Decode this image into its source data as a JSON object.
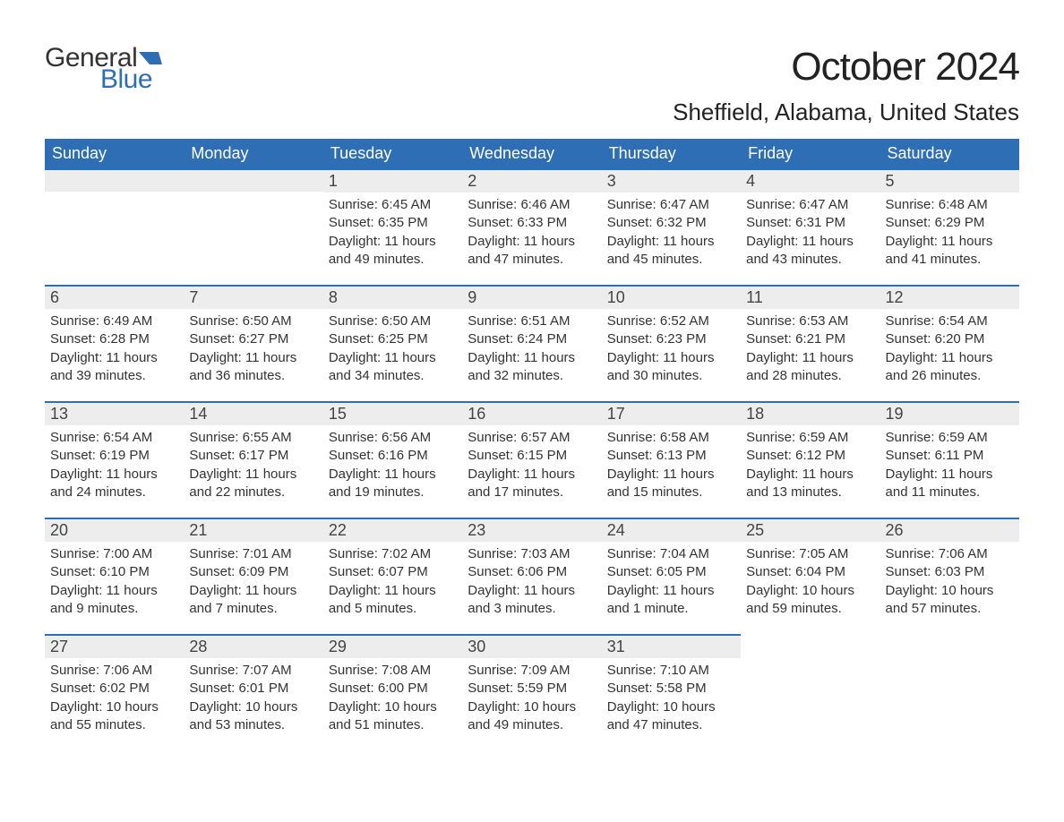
{
  "logo": {
    "text_general": "General",
    "text_blue": "Blue",
    "flag_color": "#2d6eb5"
  },
  "title": "October 2024",
  "location": "Sheffield, Alabama, United States",
  "colors": {
    "header_bg": "#2d6eb5",
    "header_text": "#ffffff",
    "daynum_bg": "#ededed",
    "daynum_border": "#2d6eb5",
    "body_text": "#333333",
    "title_text": "#222222"
  },
  "fonts": {
    "title_size_pt": 33,
    "location_size_pt": 20,
    "header_size_pt": 14,
    "daynum_size_pt": 14,
    "body_size_pt": 11
  },
  "weekdays": [
    "Sunday",
    "Monday",
    "Tuesday",
    "Wednesday",
    "Thursday",
    "Friday",
    "Saturday"
  ],
  "weeks": [
    [
      null,
      null,
      {
        "n": "1",
        "sr": "Sunrise: 6:45 AM",
        "ss": "Sunset: 6:35 PM",
        "dl1": "Daylight: 11 hours",
        "dl2": "and 49 minutes."
      },
      {
        "n": "2",
        "sr": "Sunrise: 6:46 AM",
        "ss": "Sunset: 6:33 PM",
        "dl1": "Daylight: 11 hours",
        "dl2": "and 47 minutes."
      },
      {
        "n": "3",
        "sr": "Sunrise: 6:47 AM",
        "ss": "Sunset: 6:32 PM",
        "dl1": "Daylight: 11 hours",
        "dl2": "and 45 minutes."
      },
      {
        "n": "4",
        "sr": "Sunrise: 6:47 AM",
        "ss": "Sunset: 6:31 PM",
        "dl1": "Daylight: 11 hours",
        "dl2": "and 43 minutes."
      },
      {
        "n": "5",
        "sr": "Sunrise: 6:48 AM",
        "ss": "Sunset: 6:29 PM",
        "dl1": "Daylight: 11 hours",
        "dl2": "and 41 minutes."
      }
    ],
    [
      {
        "n": "6",
        "sr": "Sunrise: 6:49 AM",
        "ss": "Sunset: 6:28 PM",
        "dl1": "Daylight: 11 hours",
        "dl2": "and 39 minutes."
      },
      {
        "n": "7",
        "sr": "Sunrise: 6:50 AM",
        "ss": "Sunset: 6:27 PM",
        "dl1": "Daylight: 11 hours",
        "dl2": "and 36 minutes."
      },
      {
        "n": "8",
        "sr": "Sunrise: 6:50 AM",
        "ss": "Sunset: 6:25 PM",
        "dl1": "Daylight: 11 hours",
        "dl2": "and 34 minutes."
      },
      {
        "n": "9",
        "sr": "Sunrise: 6:51 AM",
        "ss": "Sunset: 6:24 PM",
        "dl1": "Daylight: 11 hours",
        "dl2": "and 32 minutes."
      },
      {
        "n": "10",
        "sr": "Sunrise: 6:52 AM",
        "ss": "Sunset: 6:23 PM",
        "dl1": "Daylight: 11 hours",
        "dl2": "and 30 minutes."
      },
      {
        "n": "11",
        "sr": "Sunrise: 6:53 AM",
        "ss": "Sunset: 6:21 PM",
        "dl1": "Daylight: 11 hours",
        "dl2": "and 28 minutes."
      },
      {
        "n": "12",
        "sr": "Sunrise: 6:54 AM",
        "ss": "Sunset: 6:20 PM",
        "dl1": "Daylight: 11 hours",
        "dl2": "and 26 minutes."
      }
    ],
    [
      {
        "n": "13",
        "sr": "Sunrise: 6:54 AM",
        "ss": "Sunset: 6:19 PM",
        "dl1": "Daylight: 11 hours",
        "dl2": "and 24 minutes."
      },
      {
        "n": "14",
        "sr": "Sunrise: 6:55 AM",
        "ss": "Sunset: 6:17 PM",
        "dl1": "Daylight: 11 hours",
        "dl2": "and 22 minutes."
      },
      {
        "n": "15",
        "sr": "Sunrise: 6:56 AM",
        "ss": "Sunset: 6:16 PM",
        "dl1": "Daylight: 11 hours",
        "dl2": "and 19 minutes."
      },
      {
        "n": "16",
        "sr": "Sunrise: 6:57 AM",
        "ss": "Sunset: 6:15 PM",
        "dl1": "Daylight: 11 hours",
        "dl2": "and 17 minutes."
      },
      {
        "n": "17",
        "sr": "Sunrise: 6:58 AM",
        "ss": "Sunset: 6:13 PM",
        "dl1": "Daylight: 11 hours",
        "dl2": "and 15 minutes."
      },
      {
        "n": "18",
        "sr": "Sunrise: 6:59 AM",
        "ss": "Sunset: 6:12 PM",
        "dl1": "Daylight: 11 hours",
        "dl2": "and 13 minutes."
      },
      {
        "n": "19",
        "sr": "Sunrise: 6:59 AM",
        "ss": "Sunset: 6:11 PM",
        "dl1": "Daylight: 11 hours",
        "dl2": "and 11 minutes."
      }
    ],
    [
      {
        "n": "20",
        "sr": "Sunrise: 7:00 AM",
        "ss": "Sunset: 6:10 PM",
        "dl1": "Daylight: 11 hours",
        "dl2": "and 9 minutes."
      },
      {
        "n": "21",
        "sr": "Sunrise: 7:01 AM",
        "ss": "Sunset: 6:09 PM",
        "dl1": "Daylight: 11 hours",
        "dl2": "and 7 minutes."
      },
      {
        "n": "22",
        "sr": "Sunrise: 7:02 AM",
        "ss": "Sunset: 6:07 PM",
        "dl1": "Daylight: 11 hours",
        "dl2": "and 5 minutes."
      },
      {
        "n": "23",
        "sr": "Sunrise: 7:03 AM",
        "ss": "Sunset: 6:06 PM",
        "dl1": "Daylight: 11 hours",
        "dl2": "and 3 minutes."
      },
      {
        "n": "24",
        "sr": "Sunrise: 7:04 AM",
        "ss": "Sunset: 6:05 PM",
        "dl1": "Daylight: 11 hours",
        "dl2": "and 1 minute."
      },
      {
        "n": "25",
        "sr": "Sunrise: 7:05 AM",
        "ss": "Sunset: 6:04 PM",
        "dl1": "Daylight: 10 hours",
        "dl2": "and 59 minutes."
      },
      {
        "n": "26",
        "sr": "Sunrise: 7:06 AM",
        "ss": "Sunset: 6:03 PM",
        "dl1": "Daylight: 10 hours",
        "dl2": "and 57 minutes."
      }
    ],
    [
      {
        "n": "27",
        "sr": "Sunrise: 7:06 AM",
        "ss": "Sunset: 6:02 PM",
        "dl1": "Daylight: 10 hours",
        "dl2": "and 55 minutes."
      },
      {
        "n": "28",
        "sr": "Sunrise: 7:07 AM",
        "ss": "Sunset: 6:01 PM",
        "dl1": "Daylight: 10 hours",
        "dl2": "and 53 minutes."
      },
      {
        "n": "29",
        "sr": "Sunrise: 7:08 AM",
        "ss": "Sunset: 6:00 PM",
        "dl1": "Daylight: 10 hours",
        "dl2": "and 51 minutes."
      },
      {
        "n": "30",
        "sr": "Sunrise: 7:09 AM",
        "ss": "Sunset: 5:59 PM",
        "dl1": "Daylight: 10 hours",
        "dl2": "and 49 minutes."
      },
      {
        "n": "31",
        "sr": "Sunrise: 7:10 AM",
        "ss": "Sunset: 5:58 PM",
        "dl1": "Daylight: 10 hours",
        "dl2": "and 47 minutes."
      },
      null,
      null
    ]
  ]
}
